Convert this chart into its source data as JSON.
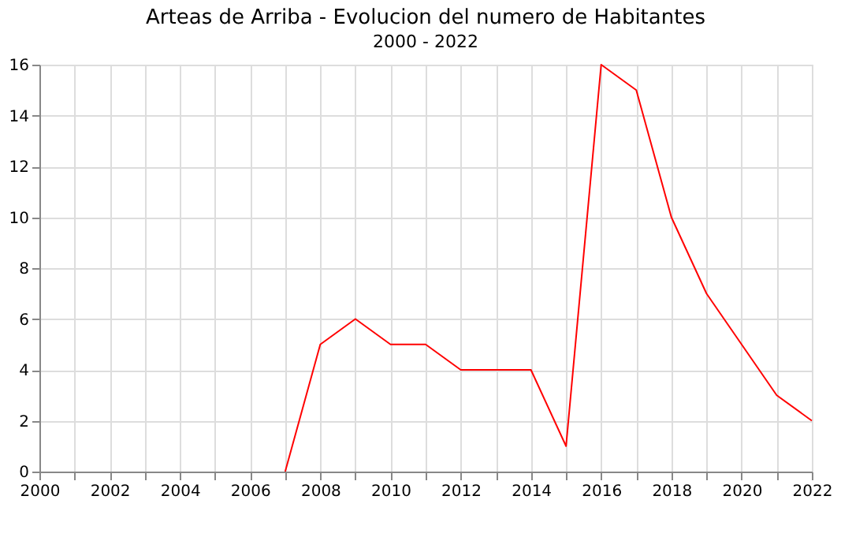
{
  "chart_data": {
    "type": "line",
    "title": "Arteas de Arriba - Evolucion del numero de Habitantes",
    "subtitle": "2000 - 2022",
    "x": [
      2007,
      2008,
      2009,
      2010,
      2011,
      2012,
      2013,
      2014,
      2015,
      2016,
      2017,
      2018,
      2019,
      2020,
      2021,
      2022
    ],
    "series": [
      {
        "color": "#ff0000",
        "values": [
          0,
          5,
          6,
          5,
          5,
          4,
          4,
          4,
          1,
          16,
          15,
          10,
          7,
          5,
          3,
          2
        ]
      }
    ],
    "xlim": [
      2000,
      2022
    ],
    "xticks": [
      2000,
      {
        "value": 2001,
        "label": null
      },
      2002,
      {
        "value": 2003,
        "label": null
      },
      2004,
      {
        "value": 2005,
        "label": null
      },
      2006,
      {
        "value": 2007,
        "label": null
      },
      2008,
      {
        "value": 2009,
        "label": null
      },
      2010,
      {
        "value": 2011,
        "label": null
      },
      2012,
      {
        "value": 2013,
        "label": null
      },
      2014,
      {
        "value": 2015,
        "label": null
      },
      2016,
      {
        "value": 2017,
        "label": null
      },
      2018,
      {
        "value": 2019,
        "label": null
      },
      2020,
      {
        "value": 2021,
        "label": null
      },
      2022
    ],
    "ylim": [
      0,
      16
    ],
    "yticks": [
      0,
      2,
      4,
      6,
      8,
      10,
      12,
      14,
      16
    ],
    "grid": true,
    "marker": "none",
    "line_style": "solid"
  }
}
